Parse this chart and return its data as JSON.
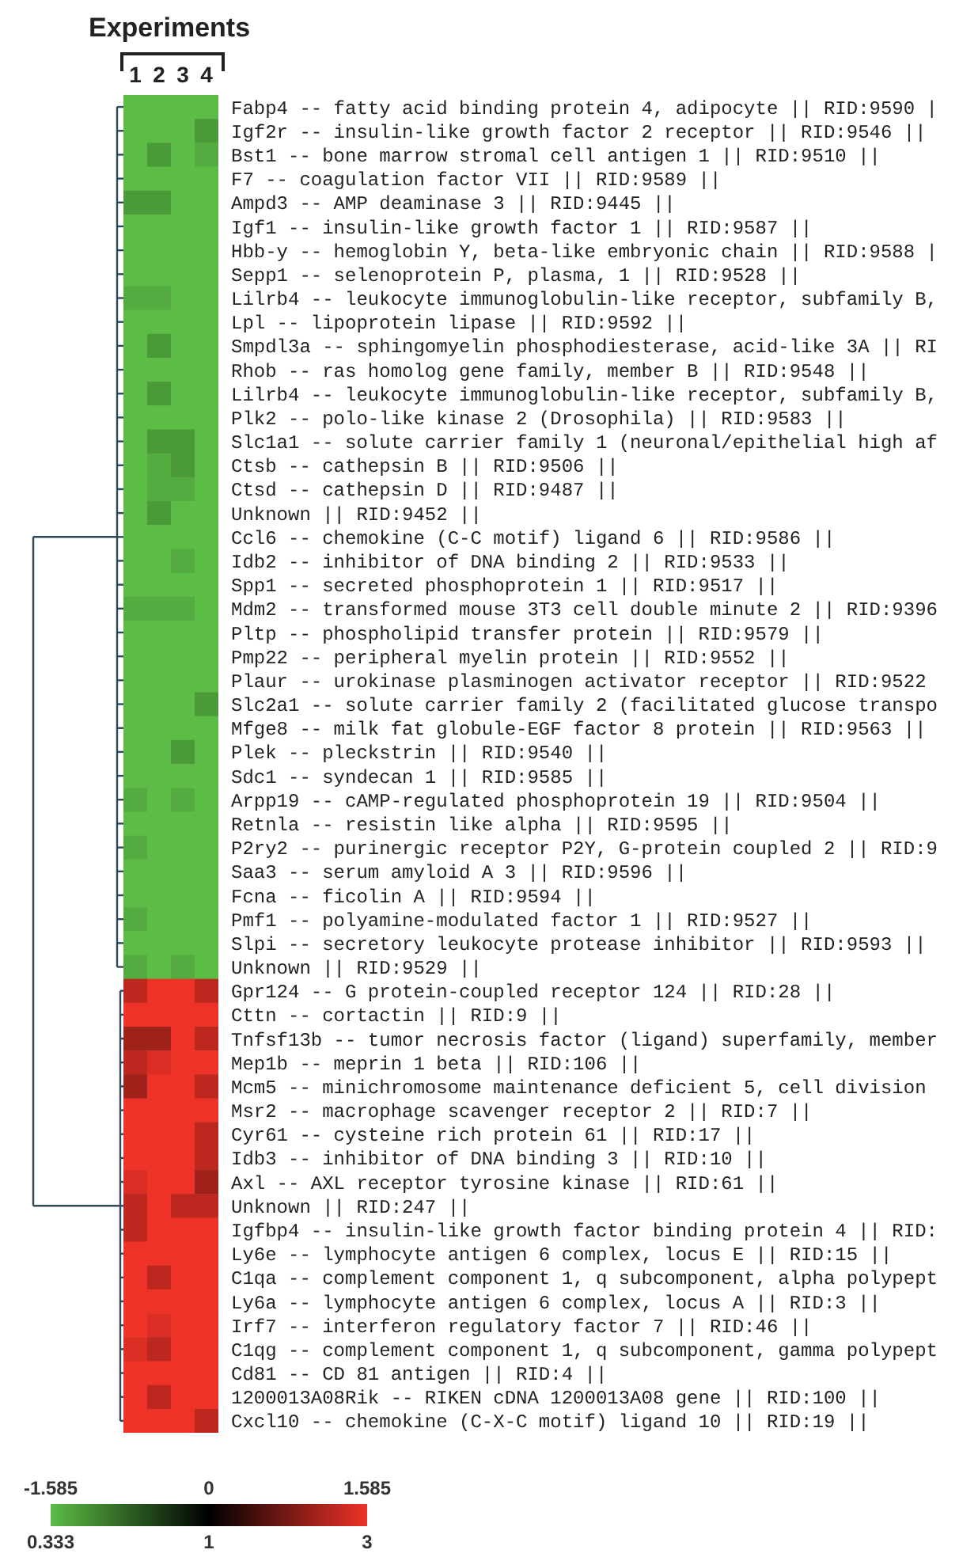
{
  "chart_data": {
    "type": "heatmap",
    "title": "Experiments",
    "categories": [
      "1",
      "2",
      "3",
      "4"
    ],
    "y_categories": [
      "Fabp4 -- fatty acid binding protein 4, adipocyte || RID:9590 |",
      "Igf2r -- insulin-like growth factor 2 receptor || RID:9546 ||",
      "Bst1 -- bone marrow stromal cell antigen 1 || RID:9510 ||",
      "F7 -- coagulation factor VII || RID:9589 ||",
      "Ampd3 -- AMP deaminase 3 || RID:9445 ||",
      "Igf1 -- insulin-like growth factor 1 || RID:9587 ||",
      "Hbb-y -- hemoglobin Y, beta-like embryonic chain || RID:9588 |",
      "Sepp1 -- selenoprotein P, plasma, 1 || RID:9528 ||",
      "Lilrb4 -- leukocyte immunoglobulin-like receptor, subfamily B,",
      "Lpl -- lipoprotein lipase || RID:9592 ||",
      "Smpdl3a -- sphingomyelin phosphodiesterase, acid-like 3A || RI",
      "Rhob -- ras homolog gene family, member B || RID:9548 ||",
      "Lilrb4 -- leukocyte immunoglobulin-like receptor, subfamily B,",
      "Plk2 -- polo-like kinase 2 (Drosophila) || RID:9583 ||",
      "Slc1a1 -- solute carrier family 1 (neuronal/epithelial high af",
      "Ctsb -- cathepsin B || RID:9506 ||",
      "Ctsd -- cathepsin D || RID:9487 ||",
      "Unknown || RID:9452 ||",
      "Ccl6 -- chemokine (C-C motif) ligand 6 || RID:9586 ||",
      "Idb2 -- inhibitor of DNA binding 2 || RID:9533 ||",
      "Spp1 -- secreted phosphoprotein 1 || RID:9517 ||",
      "Mdm2 -- transformed mouse 3T3 cell double minute 2 || RID:9396",
      "Pltp -- phospholipid transfer protein || RID:9579 ||",
      "Pmp22 -- peripheral myelin protein || RID:9552 ||",
      "Plaur -- urokinase plasminogen activator receptor || RID:9522",
      "Slc2a1 -- solute carrier family 2 (facilitated glucose transpo",
      "Mfge8 -- milk fat globule-EGF factor 8 protein || RID:9563 ||",
      "Plek -- pleckstrin || RID:9540 ||",
      "Sdc1 -- syndecan 1 || RID:9585 ||",
      "Arpp19 -- cAMP-regulated phosphoprotein 19 || RID:9504 ||",
      "Retnla -- resistin like alpha || RID:9595 ||",
      "P2ry2 -- purinergic receptor P2Y, G-protein coupled 2 || RID:9",
      "Saa3 -- serum amyloid A 3 || RID:9596 ||",
      "Fcna -- ficolin A || RID:9594 ||",
      "Pmf1 -- polyamine-modulated factor 1 || RID:9527 ||",
      "Slpi -- secretory leukocyte protease inhibitor || RID:9593 ||",
      "Unknown || RID:9529 ||",
      "Gpr124 -- G protein-coupled receptor 124 || RID:28 ||",
      "Cttn -- cortactin || RID:9 ||",
      "Tnfsf13b -- tumor necrosis factor (ligand) superfamily, member",
      "Mep1b -- meprin 1 beta || RID:106 ||",
      "Mcm5 -- minichromosome maintenance deficient 5, cell division",
      "Msr2 -- macrophage scavenger receptor 2 || RID:7 ||",
      "Cyr61 -- cysteine rich protein 61 || RID:17 ||",
      "Idb3 -- inhibitor of DNA binding 3 || RID:10 ||",
      "Axl -- AXL receptor tyrosine kinase || RID:61 ||",
      "Unknown || RID:247 ||",
      "Igfbp4 -- insulin-like growth factor binding protein 4 || RID:",
      "Ly6e -- lymphocyte antigen 6 complex, locus E || RID:15 ||",
      "C1qa -- complement component 1, q subcomponent, alpha polypept",
      "Ly6a -- lymphocyte antigen 6 complex, locus A || RID:3 ||",
      "Irf7 -- interferon regulatory factor 7 || RID:46 ||",
      "C1qg -- complement component 1, q subcomponent, gamma polypept",
      "Cd81 -- CD 81 antigen || RID:4 ||",
      "1200013A08Rik -- RIKEN cDNA 1200013A08 gene || RID:100 ||",
      "Cxcl10 -- chemokine (C-X-C motif) ligand 10 || RID:19 ||"
    ],
    "cells": [
      [
        -1.585,
        -1.585,
        -1.585,
        -1.585
      ],
      [
        -1.585,
        -1.585,
        -1.585,
        -1.3
      ],
      [
        -1.585,
        -1.3,
        -1.585,
        -1.45
      ],
      [
        -1.585,
        -1.585,
        -1.585,
        -1.585
      ],
      [
        -1.3,
        -1.3,
        -1.585,
        -1.585
      ],
      [
        -1.585,
        -1.585,
        -1.585,
        -1.585
      ],
      [
        -1.585,
        -1.585,
        -1.585,
        -1.585
      ],
      [
        -1.585,
        -1.585,
        -1.585,
        -1.585
      ],
      [
        -1.45,
        -1.45,
        -1.585,
        -1.585
      ],
      [
        -1.585,
        -1.585,
        -1.585,
        -1.585
      ],
      [
        -1.585,
        -1.3,
        -1.585,
        -1.585
      ],
      [
        -1.585,
        -1.585,
        -1.585,
        -1.585
      ],
      [
        -1.585,
        -1.3,
        -1.585,
        -1.585
      ],
      [
        -1.585,
        -1.585,
        -1.585,
        -1.585
      ],
      [
        -1.585,
        -1.3,
        -1.3,
        -1.585
      ],
      [
        -1.585,
        -1.45,
        -1.3,
        -1.585
      ],
      [
        -1.585,
        -1.45,
        -1.45,
        -1.585
      ],
      [
        -1.585,
        -1.3,
        -1.585,
        -1.585
      ],
      [
        -1.585,
        -1.585,
        -1.585,
        -1.585
      ],
      [
        -1.585,
        -1.585,
        -1.45,
        -1.585
      ],
      [
        -1.585,
        -1.585,
        -1.585,
        -1.585
      ],
      [
        -1.45,
        -1.45,
        -1.45,
        -1.585
      ],
      [
        -1.585,
        -1.585,
        -1.585,
        -1.585
      ],
      [
        -1.585,
        -1.585,
        -1.585,
        -1.585
      ],
      [
        -1.585,
        -1.585,
        -1.585,
        -1.585
      ],
      [
        -1.585,
        -1.585,
        -1.585,
        -1.3
      ],
      [
        -1.585,
        -1.585,
        -1.585,
        -1.585
      ],
      [
        -1.585,
        -1.585,
        -1.3,
        -1.585
      ],
      [
        -1.585,
        -1.585,
        -1.585,
        -1.585
      ],
      [
        -1.45,
        -1.585,
        -1.45,
        -1.585
      ],
      [
        -1.585,
        -1.585,
        -1.585,
        -1.585
      ],
      [
        -1.45,
        -1.585,
        -1.585,
        -1.585
      ],
      [
        -1.585,
        -1.585,
        -1.585,
        -1.585
      ],
      [
        -1.585,
        -1.585,
        -1.585,
        -1.585
      ],
      [
        -1.45,
        -1.585,
        -1.585,
        -1.585
      ],
      [
        -1.585,
        -1.585,
        -1.585,
        -1.585
      ],
      [
        -1.45,
        -1.585,
        -1.45,
        -1.585
      ],
      [
        1.25,
        1.585,
        1.585,
        1.25
      ],
      [
        1.585,
        1.585,
        1.585,
        1.585
      ],
      [
        1.05,
        1.05,
        1.585,
        1.25
      ],
      [
        1.25,
        1.45,
        1.585,
        1.585
      ],
      [
        1.05,
        1.585,
        1.585,
        1.25
      ],
      [
        1.585,
        1.585,
        1.585,
        1.585
      ],
      [
        1.585,
        1.585,
        1.585,
        1.25
      ],
      [
        1.585,
        1.585,
        1.585,
        1.25
      ],
      [
        1.45,
        1.585,
        1.585,
        1.05
      ],
      [
        1.25,
        1.585,
        1.25,
        1.25
      ],
      [
        1.25,
        1.585,
        1.585,
        1.585
      ],
      [
        1.585,
        1.585,
        1.585,
        1.585
      ],
      [
        1.585,
        1.25,
        1.585,
        1.585
      ],
      [
        1.585,
        1.585,
        1.585,
        1.585
      ],
      [
        1.585,
        1.45,
        1.585,
        1.585
      ],
      [
        1.45,
        1.25,
        1.585,
        1.585
      ],
      [
        1.585,
        1.585,
        1.585,
        1.585
      ],
      [
        1.585,
        1.25,
        1.585,
        1.585
      ],
      [
        1.585,
        1.585,
        1.585,
        1.25
      ]
    ],
    "clim": [
      -1.585,
      1.585
    ],
    "cticks": [
      -1.585,
      0,
      1.585
    ],
    "annotations": [
      "0.333",
      "1",
      "3"
    ]
  }
}
